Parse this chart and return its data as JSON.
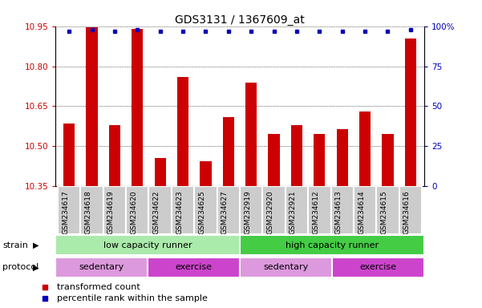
{
  "title": "GDS3131 / 1367609_at",
  "samples": [
    "GSM234617",
    "GSM234618",
    "GSM234619",
    "GSM234620",
    "GSM234622",
    "GSM234623",
    "GSM234625",
    "GSM234627",
    "GSM232919",
    "GSM232920",
    "GSM232921",
    "GSM234612",
    "GSM234613",
    "GSM234614",
    "GSM234615",
    "GSM234616"
  ],
  "bar_values": [
    10.585,
    10.945,
    10.58,
    10.94,
    10.455,
    10.76,
    10.445,
    10.61,
    10.74,
    10.545,
    10.58,
    10.545,
    10.565,
    10.63,
    10.545,
    10.905
  ],
  "percentile_values": [
    97,
    98,
    97,
    98,
    97,
    97,
    97,
    97,
    97,
    97,
    97,
    97,
    97,
    97,
    97,
    98
  ],
  "ylim_left": [
    10.35,
    10.95
  ],
  "ylim_right": [
    0,
    100
  ],
  "yticks_left": [
    10.35,
    10.5,
    10.65,
    10.8,
    10.95
  ],
  "yticks_right": [
    0,
    25,
    50,
    75,
    100
  ],
  "bar_color": "#cc0000",
  "percentile_color": "#0000bb",
  "bar_bottom": 10.35,
  "strain_groups": [
    {
      "label": "low capacity runner",
      "start": 0,
      "end": 8,
      "color": "#aaeaaa"
    },
    {
      "label": "high capacity runner",
      "start": 8,
      "end": 16,
      "color": "#44cc44"
    }
  ],
  "protocol_groups": [
    {
      "label": "sedentary",
      "start": 0,
      "end": 4,
      "color": "#dd99dd"
    },
    {
      "label": "exercise",
      "start": 4,
      "end": 8,
      "color": "#cc44cc"
    },
    {
      "label": "sedentary",
      "start": 8,
      "end": 12,
      "color": "#dd99dd"
    },
    {
      "label": "exercise",
      "start": 12,
      "end": 16,
      "color": "#cc44cc"
    }
  ],
  "legend_items": [
    {
      "label": "transformed count",
      "color": "#cc0000"
    },
    {
      "label": "percentile rank within the sample",
      "color": "#0000bb"
    }
  ],
  "background_color": "#ffffff",
  "tick_label_color_left": "#cc0000",
  "tick_label_color_right": "#0000bb",
  "xtick_bg_color": "#cccccc",
  "xtick_border_color": "#ffffff"
}
